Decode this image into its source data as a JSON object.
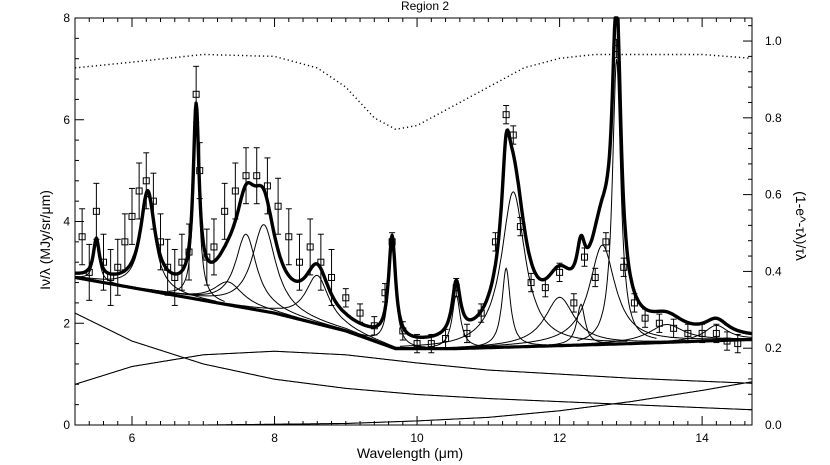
{
  "chart_data": {
    "type": "line",
    "title": "Region 2",
    "xlabel": "Wavelength (μm)",
    "ylabel": "Iν/λ (MJy/sr/μm)",
    "ylabel_right": "(1-e^-τλ)/τλ",
    "xlim": [
      5.2,
      14.7
    ],
    "ylim": [
      0,
      8
    ],
    "ylim_right": [
      0,
      1.06
    ],
    "x_ticks": [
      6,
      8,
      10,
      12,
      14
    ],
    "y_ticks": [
      0,
      2,
      4,
      6,
      8
    ],
    "y_ticks_right": [
      "0.0",
      "0.2",
      "0.4",
      "0.6",
      "0.8",
      "1.0"
    ],
    "grid": false,
    "continuum_total": {
      "x": [
        5.2,
        6,
        7,
        8,
        9,
        9.7,
        10.5,
        11,
        12,
        13,
        14,
        14.7
      ],
      "y": [
        2.9,
        2.7,
        2.45,
        2.2,
        1.85,
        1.5,
        1.5,
        1.52,
        1.56,
        1.6,
        1.65,
        1.68
      ]
    },
    "continuum_components": [
      {
        "x": [
          5.2,
          6,
          7,
          8,
          9,
          10,
          11,
          12,
          13,
          14,
          14.7
        ],
        "y": [
          2.2,
          1.65,
          1.2,
          0.9,
          0.72,
          0.6,
          0.52,
          0.46,
          0.4,
          0.34,
          0.3
        ]
      },
      {
        "x": [
          5.2,
          6,
          7,
          8,
          9,
          10,
          11,
          12,
          13,
          14,
          14.7
        ],
        "y": [
          0.8,
          1.15,
          1.38,
          1.45,
          1.38,
          1.22,
          1.08,
          1.0,
          0.92,
          0.86,
          0.82
        ]
      },
      {
        "x": [
          5.2,
          7,
          9,
          10,
          11,
          12,
          13,
          14,
          14.7
        ],
        "y": [
          0.0,
          0.0,
          0.03,
          0.08,
          0.15,
          0.28,
          0.46,
          0.68,
          0.85
        ]
      }
    ],
    "features": [
      {
        "center": 5.5,
        "height": 0.75,
        "width": 0.05
      },
      {
        "center": 6.22,
        "height": 1.85,
        "width": 0.12
      },
      {
        "center": 6.9,
        "height": 3.5,
        "width": 0.05
      },
      {
        "center": 7.35,
        "height": 0.45,
        "width": 0.25
      },
      {
        "center": 7.6,
        "height": 1.45,
        "width": 0.18
      },
      {
        "center": 7.85,
        "height": 1.7,
        "width": 0.2
      },
      {
        "center": 8.6,
        "height": 0.95,
        "width": 0.2
      },
      {
        "center": 9.65,
        "height": 2.05,
        "width": 0.06
      },
      {
        "center": 10.55,
        "height": 1.05,
        "width": 0.07
      },
      {
        "center": 11.25,
        "height": 1.55,
        "width": 0.07
      },
      {
        "center": 11.35,
        "height": 3.05,
        "width": 0.2
      },
      {
        "center": 12.0,
        "height": 0.95,
        "width": 0.25
      },
      {
        "center": 12.3,
        "height": 0.8,
        "width": 0.07
      },
      {
        "center": 12.6,
        "height": 1.95,
        "width": 0.22
      },
      {
        "center": 12.8,
        "height": 5.6,
        "width": 0.07
      },
      {
        "center": 13.5,
        "height": 0.35,
        "width": 0.3
      },
      {
        "center": 14.2,
        "height": 0.3,
        "width": 0.2
      }
    ],
    "extinction_curve": {
      "x": [
        5.2,
        6,
        7,
        8,
        8.6,
        9.0,
        9.4,
        9.7,
        10.0,
        10.5,
        11,
        11.5,
        12,
        12.5,
        13,
        14,
        14.7
      ],
      "y": [
        0.93,
        0.945,
        0.965,
        0.96,
        0.93,
        0.88,
        0.8,
        0.77,
        0.78,
        0.83,
        0.88,
        0.93,
        0.955,
        0.965,
        0.965,
        0.965,
        0.955
      ]
    },
    "data_points": {
      "x": [
        5.3,
        5.4,
        5.5,
        5.6,
        5.7,
        5.8,
        5.9,
        6.0,
        6.1,
        6.2,
        6.3,
        6.4,
        6.5,
        6.6,
        6.7,
        6.8,
        6.9,
        6.95,
        7.05,
        7.15,
        7.3,
        7.45,
        7.6,
        7.75,
        7.9,
        8.05,
        8.2,
        8.35,
        8.5,
        8.65,
        8.8,
        9.0,
        9.2,
        9.4,
        9.55,
        9.65,
        9.8,
        10.0,
        10.2,
        10.4,
        10.55,
        10.7,
        10.9,
        11.1,
        11.25,
        11.35,
        11.45,
        11.6,
        11.8,
        12.0,
        12.2,
        12.35,
        12.5,
        12.65,
        12.8,
        12.9,
        13.05,
        13.2,
        13.4,
        13.6,
        13.8,
        14.0,
        14.2,
        14.35,
        14.5
      ],
      "y": [
        3.7,
        3.0,
        4.2,
        3.2,
        2.9,
        3.1,
        3.6,
        4.1,
        4.6,
        4.8,
        4.4,
        3.6,
        3.1,
        2.9,
        3.2,
        3.4,
        6.5,
        5.0,
        3.3,
        3.5,
        4.2,
        4.6,
        4.9,
        4.9,
        4.7,
        4.3,
        3.7,
        3.2,
        3.5,
        3.2,
        2.9,
        2.5,
        2.2,
        1.95,
        2.6,
        3.6,
        1.85,
        1.6,
        1.6,
        1.7,
        2.7,
        1.8,
        2.2,
        3.6,
        6.1,
        5.7,
        3.9,
        2.8,
        2.7,
        3.0,
        2.4,
        3.3,
        2.9,
        3.6,
        7.4,
        3.1,
        2.4,
        2.1,
        2.0,
        1.9,
        1.8,
        1.8,
        1.8,
        1.65,
        1.6
      ]
    }
  }
}
